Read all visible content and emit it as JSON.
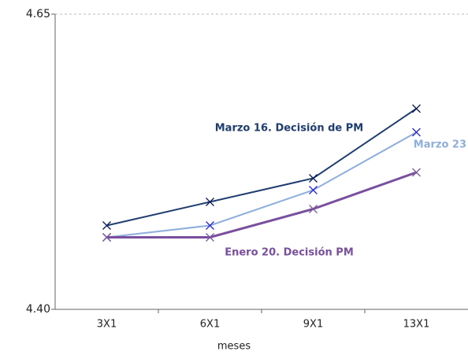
{
  "chart_data": {
    "type": "line",
    "x_label": "meses",
    "categories": [
      "3X1",
      "6X1",
      "9X1",
      "13X1"
    ],
    "series": [
      {
        "name": "Marzo 16. Decisión de PM",
        "color": "#1f3d6e",
        "values": [
          4.471,
          4.491,
          4.511,
          4.57
        ]
      },
      {
        "name": "Marzo 23",
        "color": "#8eaedc",
        "values": [
          4.461,
          4.471,
          4.501,
          4.55
        ]
      },
      {
        "name": "Enero 20. Decisión PM",
        "color": "#7a4f9e",
        "values": [
          4.461,
          4.461,
          4.485,
          4.516
        ]
      }
    ],
    "ylim": [
      4.4,
      4.65
    ],
    "yticks": [
      {
        "value": 4.4,
        "label": "4.40"
      },
      4.65
    ],
    "grid": true
  }
}
